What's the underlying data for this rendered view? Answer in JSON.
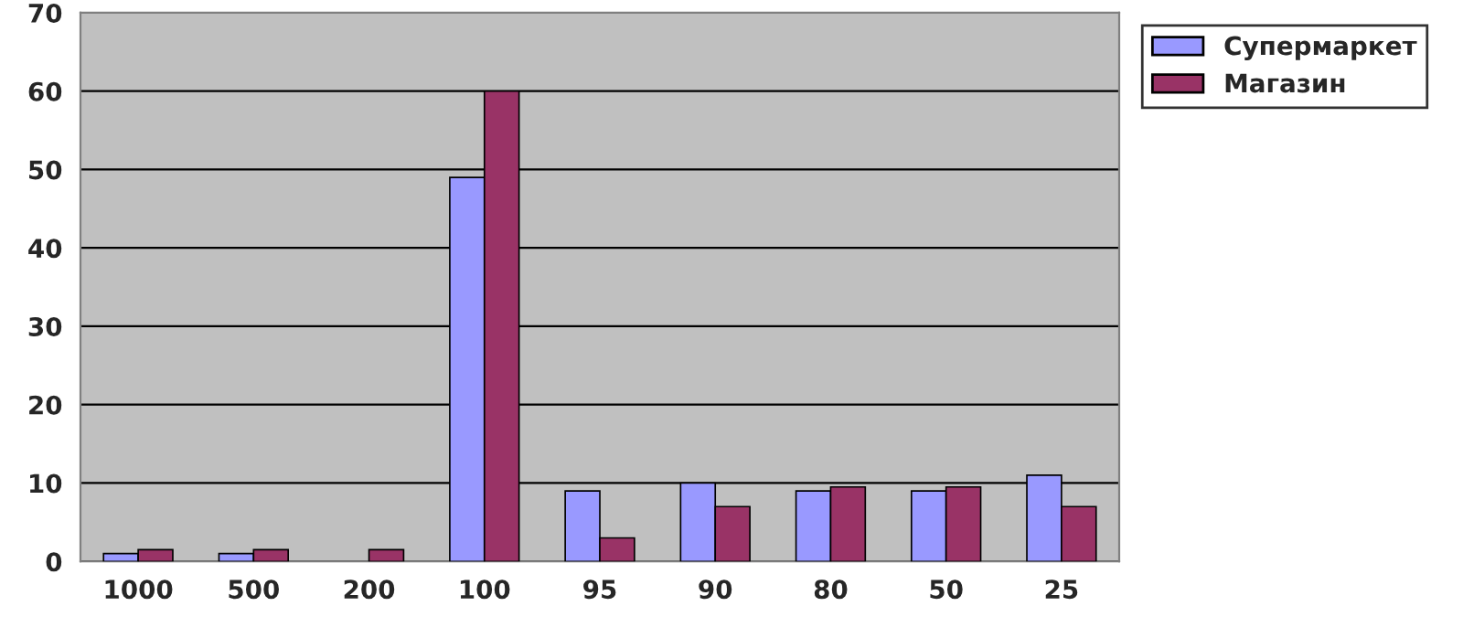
{
  "chart_data": {
    "type": "bar",
    "categories": [
      "1000",
      "500",
      "200",
      "100",
      "95",
      "90",
      "80",
      "50",
      "25"
    ],
    "series": [
      {
        "name": "Супермаркет",
        "color": "#9999ff",
        "values": [
          1,
          1,
          0,
          49,
          9,
          10,
          9,
          9,
          11
        ]
      },
      {
        "name": "Магазин",
        "color": "#993366",
        "values": [
          1.5,
          1.5,
          1.5,
          60,
          3,
          7,
          9.5,
          9.5,
          7
        ]
      }
    ],
    "ylim": [
      0,
      70
    ],
    "yticks": [
      0,
      10,
      20,
      30,
      40,
      50,
      60,
      70
    ],
    "grid": "y",
    "legend": "right"
  }
}
